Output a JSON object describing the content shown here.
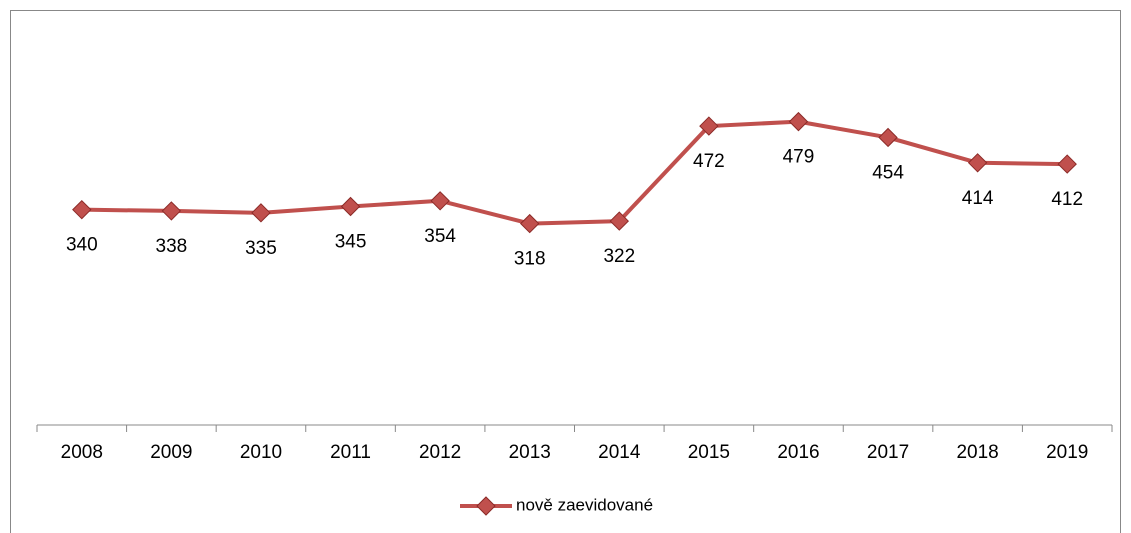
{
  "chart_data": {
    "type": "line",
    "categories": [
      "2008",
      "2009",
      "2010",
      "2011",
      "2012",
      "2013",
      "2014",
      "2015",
      "2016",
      "2017",
      "2018",
      "2019"
    ],
    "series": [
      {
        "name": "nově zaevidované",
        "color": "#c0504d",
        "values": [
          340,
          338,
          335,
          345,
          354,
          318,
          322,
          472,
          479,
          454,
          414,
          412
        ]
      }
    ],
    "ylim": [
      0,
      600
    ],
    "legend": "bottom"
  }
}
